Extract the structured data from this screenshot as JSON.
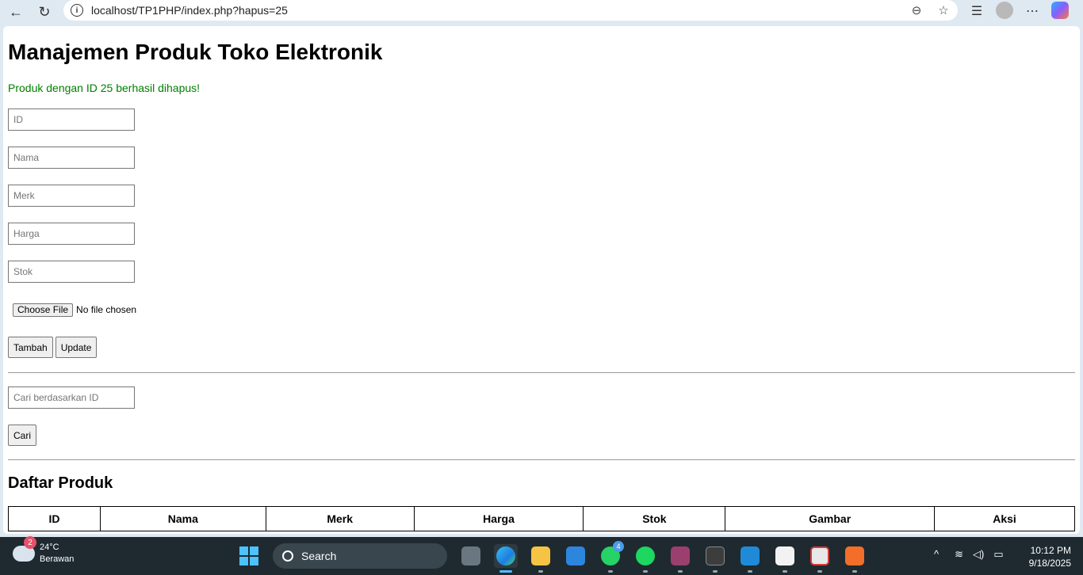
{
  "browser": {
    "url": "localhost/TP1PHP/index.php?hapus=25",
    "back_icon": "←",
    "reload_icon": "↻"
  },
  "page": {
    "title": "Manajemen Produk Toko Elektronik",
    "message": "Produk dengan ID 25 berhasil dihapus!",
    "form": {
      "id_placeholder": "ID",
      "nama_placeholder": "Nama",
      "merk_placeholder": "Merk",
      "harga_placeholder": "Harga",
      "stok_placeholder": "Stok",
      "file_button": "Choose File",
      "file_status": "No file chosen",
      "tambah_label": "Tambah",
      "update_label": "Update"
    },
    "search": {
      "placeholder": "Cari berdasarkan ID",
      "button": "Cari"
    },
    "list_title": "Daftar Produk",
    "table_headers": [
      "ID",
      "Nama",
      "Merk",
      "Harga",
      "Stok",
      "Gambar",
      "Aksi"
    ]
  },
  "taskbar": {
    "weather_temp": "24°C",
    "weather_desc": "Berawan",
    "weather_badge": "2",
    "search_label": "Search",
    "whatsapp_badge": "4",
    "time": "10:12 PM",
    "date": "9/18/2025"
  },
  "colors": {
    "success": "#008000",
    "taskbar": "#1e2a30"
  }
}
